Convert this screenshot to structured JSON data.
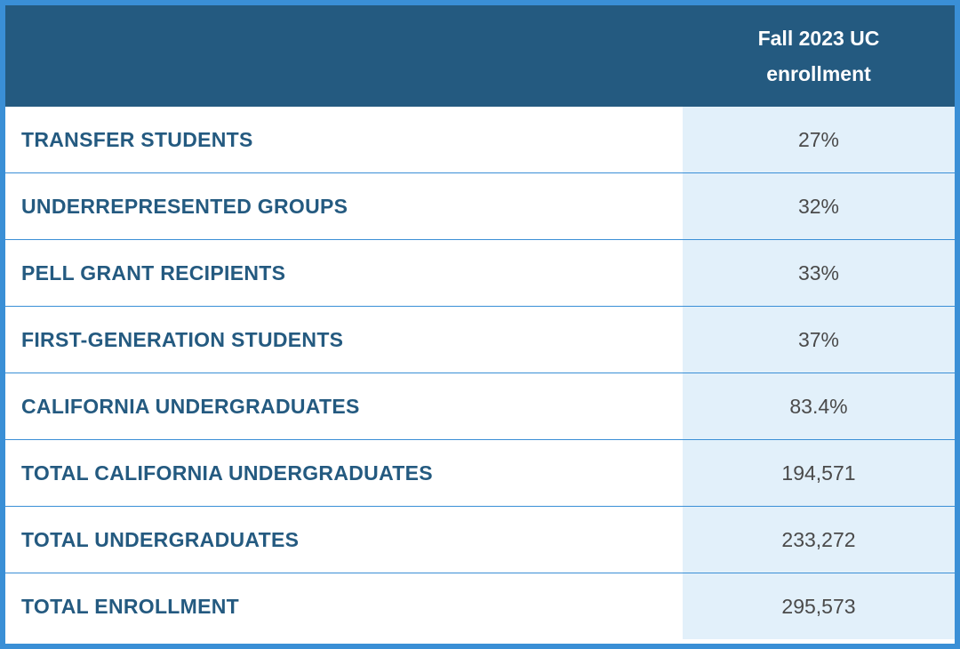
{
  "table": {
    "column_header": "Fall 2023 UC enrollment",
    "rows": [
      {
        "label": "TRANSFER STUDENTS",
        "value": "27%"
      },
      {
        "label": "UNDERREPRESENTED GROUPS",
        "value": "32%"
      },
      {
        "label": "PELL GRANT RECIPIENTS",
        "value": "33%"
      },
      {
        "label": "FIRST-GENERATION STUDENTS",
        "value": "37%"
      },
      {
        "label": "CALIFORNIA UNDERGRADUATES",
        "value": "83.4%"
      },
      {
        "label": "TOTAL CALIFORNIA UNDERGRADUATES",
        "value": "194,571"
      },
      {
        "label": "TOTAL UNDERGRADUATES",
        "value": "233,272"
      },
      {
        "label": "TOTAL ENROLLMENT",
        "value": "295,573"
      }
    ]
  },
  "colors": {
    "header_background": "#245a80",
    "border": "#3a8fd6",
    "value_column_background": "#e2f0fa",
    "label_text": "#245a80",
    "value_text": "#4a4a4a"
  }
}
